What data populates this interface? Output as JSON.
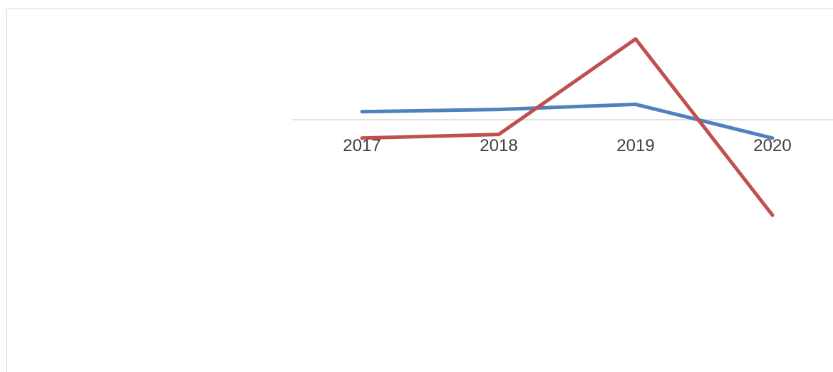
{
  "chart_data": {
    "type": "line",
    "title": "",
    "xlabel": "",
    "ylabel": "",
    "categories": [
      "2017",
      "2018",
      "2019",
      "2020"
    ],
    "series": [
      {
        "values": [
          1.1,
          1.4,
          2.1,
          -2.5
        ],
        "color": "#4f81bd"
      },
      {
        "values": [
          -2.5,
          -2.0,
          11.0,
          -13.0
        ],
        "color": "#c0504d"
      }
    ],
    "ylim": [
      -30,
      11
    ],
    "grid": false,
    "legend": "none"
  }
}
